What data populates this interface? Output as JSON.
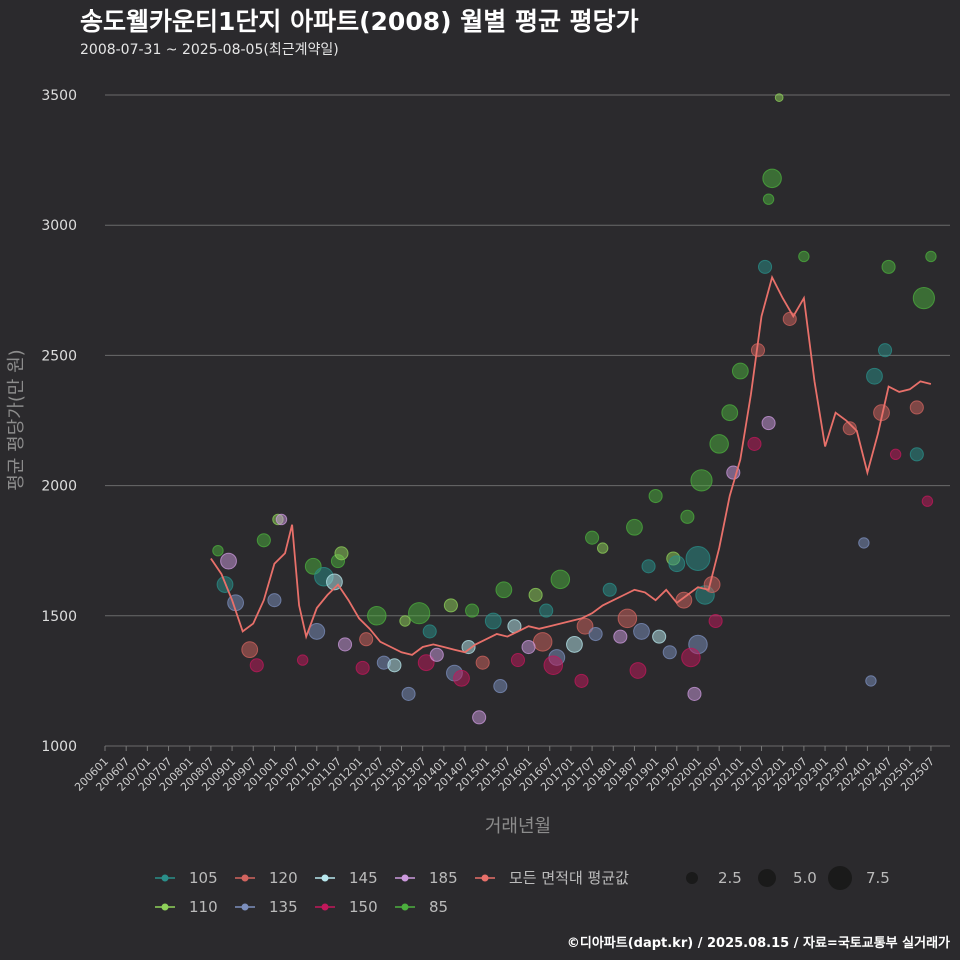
{
  "title": "송도웰카운티1단지 아파트(2008) 월별 평균 평당가",
  "subtitle": "2008-07-31 ~ 2025-08-05(최근계약일)",
  "caption": "©디아파트(dapt.kr) / 2025.08.15 / 자료=국토교통부 실거래가",
  "colors": {
    "background": "#2b2a2d",
    "grid": "#6b6b6b",
    "avg_line": "#e8706a",
    "s105": "#2a8f8a",
    "s110": "#8fd15a",
    "s120": "#d2645f",
    "s135": "#7c8fbd",
    "s145": "#b8e8ee",
    "s150": "#c2185b",
    "s185": "#cc99dd",
    "s85": "#4caf3e"
  },
  "chart_data": {
    "type": "scatter",
    "xlabel": "거래년월",
    "ylabel": "평균 평당가(만 원)",
    "ylim": [
      1000,
      3500
    ],
    "yticks": [
      1000,
      1500,
      2000,
      2500,
      3000,
      3500
    ],
    "xticks": [
      "200601",
      "200607",
      "200701",
      "200707",
      "200801",
      "200807",
      "200901",
      "200907",
      "201001",
      "201007",
      "201101",
      "201107",
      "201201",
      "201207",
      "201301",
      "201307",
      "201401",
      "201407",
      "201501",
      "201507",
      "201601",
      "201607",
      "201701",
      "201707",
      "201801",
      "201807",
      "201901",
      "201907",
      "202001",
      "202007",
      "202101",
      "202107",
      "202201",
      "202207",
      "202301",
      "202307",
      "202401",
      "202407",
      "202501",
      "202507"
    ],
    "grid": "horizontal",
    "legend_position": "bottom",
    "size_legend": {
      "labels": [
        "2.5",
        "5.0",
        "7.5"
      ],
      "values": [
        2.5,
        5.0,
        7.5
      ]
    },
    "legend": [
      {
        "label": "105",
        "key": "s105"
      },
      {
        "label": "120",
        "key": "s120"
      },
      {
        "label": "145",
        "key": "s145"
      },
      {
        "label": "185",
        "key": "s185"
      },
      {
        "label": "모든 면적대 평균값",
        "key": "avg_line"
      },
      {
        "label": "110",
        "key": "s110"
      },
      {
        "label": "135",
        "key": "s135"
      },
      {
        "label": "150",
        "key": "s150"
      },
      {
        "label": "85",
        "key": "s85"
      }
    ],
    "line": {
      "name": "모든 면적대 평균값",
      "points": [
        [
          "2008-07",
          1720
        ],
        [
          "2008-10",
          1660
        ],
        [
          "2009-01",
          1560
        ],
        [
          "2009-04",
          1440
        ],
        [
          "2009-07",
          1470
        ],
        [
          "2009-10",
          1560
        ],
        [
          "2010-01",
          1700
        ],
        [
          "2010-04",
          1740
        ],
        [
          "2010-06",
          1850
        ],
        [
          "2010-08",
          1540
        ],
        [
          "2010-10",
          1420
        ],
        [
          "2011-01",
          1530
        ],
        [
          "2011-04",
          1580
        ],
        [
          "2011-07",
          1620
        ],
        [
          "2011-10",
          1560
        ],
        [
          "2012-01",
          1490
        ],
        [
          "2012-04",
          1450
        ],
        [
          "2012-07",
          1400
        ],
        [
          "2012-10",
          1380
        ],
        [
          "2013-01",
          1360
        ],
        [
          "2013-04",
          1350
        ],
        [
          "2013-07",
          1380
        ],
        [
          "2013-10",
          1390
        ],
        [
          "2014-01",
          1380
        ],
        [
          "2014-04",
          1370
        ],
        [
          "2014-07",
          1360
        ],
        [
          "2014-10",
          1390
        ],
        [
          "2015-01",
          1410
        ],
        [
          "2015-04",
          1430
        ],
        [
          "2015-07",
          1420
        ],
        [
          "2015-10",
          1440
        ],
        [
          "2016-01",
          1460
        ],
        [
          "2016-04",
          1450
        ],
        [
          "2016-07",
          1460
        ],
        [
          "2016-10",
          1470
        ],
        [
          "2017-01",
          1480
        ],
        [
          "2017-04",
          1490
        ],
        [
          "2017-07",
          1510
        ],
        [
          "2017-10",
          1540
        ],
        [
          "2018-01",
          1560
        ],
        [
          "2018-04",
          1580
        ],
        [
          "2018-07",
          1600
        ],
        [
          "2018-10",
          1590
        ],
        [
          "2019-01",
          1560
        ],
        [
          "2019-04",
          1600
        ],
        [
          "2019-07",
          1550
        ],
        [
          "2019-10",
          1580
        ],
        [
          "2020-01",
          1610
        ],
        [
          "2020-04",
          1600
        ],
        [
          "2020-07",
          1760
        ],
        [
          "2020-10",
          1960
        ],
        [
          "2021-01",
          2100
        ],
        [
          "2021-04",
          2350
        ],
        [
          "2021-07",
          2650
        ],
        [
          "2021-10",
          2800
        ],
        [
          "2022-01",
          2720
        ],
        [
          "2022-04",
          2650
        ],
        [
          "2022-07",
          2720
        ],
        [
          "2022-10",
          2400
        ],
        [
          "2023-01",
          2150
        ],
        [
          "2023-04",
          2280
        ],
        [
          "2023-07",
          2250
        ],
        [
          "2023-10",
          2210
        ],
        [
          "2024-01",
          2050
        ],
        [
          "2024-04",
          2200
        ],
        [
          "2024-07",
          2380
        ],
        [
          "2024-10",
          2360
        ],
        [
          "2025-01",
          2370
        ],
        [
          "2025-04",
          2400
        ],
        [
          "2025-07",
          2390
        ]
      ]
    },
    "series": [
      {
        "name": "85",
        "key": "s85",
        "points": [
          [
            "2008-09",
            1750,
            2
          ],
          [
            "2009-10",
            1790,
            3
          ],
          [
            "2010-12",
            1690,
            4
          ],
          [
            "2011-07",
            1710,
            3
          ],
          [
            "2012-06",
            1500,
            5
          ],
          [
            "2013-06",
            1510,
            6
          ],
          [
            "2014-09",
            1520,
            3
          ],
          [
            "2015-06",
            1600,
            4
          ],
          [
            "2016-10",
            1640,
            5
          ],
          [
            "2017-07",
            1800,
            3
          ],
          [
            "2018-07",
            1840,
            4
          ],
          [
            "2019-01",
            1960,
            3
          ],
          [
            "2019-10",
            1880,
            3
          ],
          [
            "2020-02",
            2020,
            6
          ],
          [
            "2020-07",
            2160,
            5
          ],
          [
            "2020-10",
            2280,
            4
          ],
          [
            "2021-01",
            2440,
            4
          ],
          [
            "2021-10",
            3180,
            5
          ],
          [
            "2021-09",
            3100,
            2
          ],
          [
            "2022-07",
            2880,
            2
          ],
          [
            "2024-07",
            2840,
            3
          ],
          [
            "2025-05",
            2720,
            6
          ],
          [
            "2025-07",
            2880,
            2
          ]
        ]
      },
      {
        "name": "110",
        "key": "s110",
        "points": [
          [
            "2010-02",
            1870,
            2
          ],
          [
            "2011-08",
            1740,
            3
          ],
          [
            "2013-02",
            1480,
            2
          ],
          [
            "2014-03",
            1540,
            3
          ],
          [
            "2016-03",
            1580,
            3
          ],
          [
            "2017-10",
            1760,
            2
          ],
          [
            "2019-06",
            1720,
            3
          ],
          [
            "2021-12",
            3490,
            1
          ]
        ]
      },
      {
        "name": "105",
        "key": "s105",
        "points": [
          [
            "2008-11",
            1620,
            4
          ],
          [
            "2011-03",
            1650,
            5
          ],
          [
            "2013-09",
            1440,
            3
          ],
          [
            "2015-03",
            1480,
            4
          ],
          [
            "2016-06",
            1520,
            3
          ],
          [
            "2017-12",
            1600,
            3
          ],
          [
            "2018-11",
            1690,
            3
          ],
          [
            "2019-07",
            1700,
            4
          ],
          [
            "2020-01",
            1720,
            7
          ],
          [
            "2020-03",
            1580,
            5
          ],
          [
            "2021-08",
            2840,
            3
          ],
          [
            "2024-03",
            2420,
            4
          ],
          [
            "2024-06",
            2520,
            3
          ],
          [
            "2025-03",
            2120,
            3
          ]
        ]
      },
      {
        "name": "120",
        "key": "s120",
        "points": [
          [
            "2009-06",
            1370,
            4
          ],
          [
            "2012-03",
            1410,
            3
          ],
          [
            "2014-12",
            1320,
            3
          ],
          [
            "2016-05",
            1400,
            5
          ],
          [
            "2017-05",
            1460,
            4
          ],
          [
            "2018-05",
            1490,
            5
          ],
          [
            "2019-09",
            1560,
            4
          ],
          [
            "2020-05",
            1620,
            4
          ],
          [
            "2021-06",
            2520,
            3
          ],
          [
            "2022-03",
            2640,
            3
          ],
          [
            "2023-08",
            2220,
            3
          ],
          [
            "2024-05",
            2280,
            4
          ],
          [
            "2025-03",
            2300,
            3
          ]
        ]
      },
      {
        "name": "135",
        "key": "s135",
        "points": [
          [
            "2009-02",
            1550,
            4
          ],
          [
            "2010-01",
            1560,
            3
          ],
          [
            "2011-01",
            1440,
            4
          ],
          [
            "2012-08",
            1320,
            3
          ],
          [
            "2013-03",
            1200,
            3
          ],
          [
            "2014-04",
            1280,
            4
          ],
          [
            "2015-05",
            1230,
            3
          ],
          [
            "2016-09",
            1340,
            4
          ],
          [
            "2017-08",
            1430,
            3
          ],
          [
            "2018-09",
            1440,
            4
          ],
          [
            "2019-05",
            1360,
            3
          ],
          [
            "2020-01",
            1390,
            5
          ],
          [
            "2023-12",
            1780,
            2
          ],
          [
            "2024-02",
            1250,
            2
          ]
        ]
      },
      {
        "name": "145",
        "key": "s145",
        "points": [
          [
            "2011-06",
            1630,
            4
          ],
          [
            "2012-11",
            1310,
            3
          ],
          [
            "2014-08",
            1380,
            3
          ],
          [
            "2015-09",
            1460,
            3
          ],
          [
            "2017-02",
            1390,
            4
          ],
          [
            "2019-02",
            1420,
            3
          ]
        ]
      },
      {
        "name": "150",
        "key": "s150",
        "points": [
          [
            "2009-08",
            1310,
            3
          ],
          [
            "2010-09",
            1330,
            2
          ],
          [
            "2012-02",
            1300,
            3
          ],
          [
            "2013-08",
            1320,
            4
          ],
          [
            "2014-06",
            1260,
            4
          ],
          [
            "2015-10",
            1330,
            3
          ],
          [
            "2016-08",
            1310,
            5
          ],
          [
            "2017-04",
            1250,
            3
          ],
          [
            "2018-08",
            1290,
            4
          ],
          [
            "2019-11",
            1340,
            5
          ],
          [
            "2020-06",
            1480,
            3
          ],
          [
            "2021-05",
            2160,
            3
          ],
          [
            "2024-09",
            2120,
            2
          ],
          [
            "2025-06",
            1940,
            2
          ]
        ]
      },
      {
        "name": "185",
        "key": "s185",
        "points": [
          [
            "2008-12",
            1710,
            4
          ],
          [
            "2010-03",
            1870,
            2
          ],
          [
            "2011-09",
            1390,
            3
          ],
          [
            "2013-11",
            1350,
            3
          ],
          [
            "2014-11",
            1110,
            3
          ],
          [
            "2016-01",
            1380,
            3
          ],
          [
            "2018-03",
            1420,
            3
          ],
          [
            "2019-12",
            1200,
            3
          ],
          [
            "2020-11",
            2050,
            3
          ],
          [
            "2021-09",
            2240,
            3
          ]
        ]
      }
    ]
  }
}
